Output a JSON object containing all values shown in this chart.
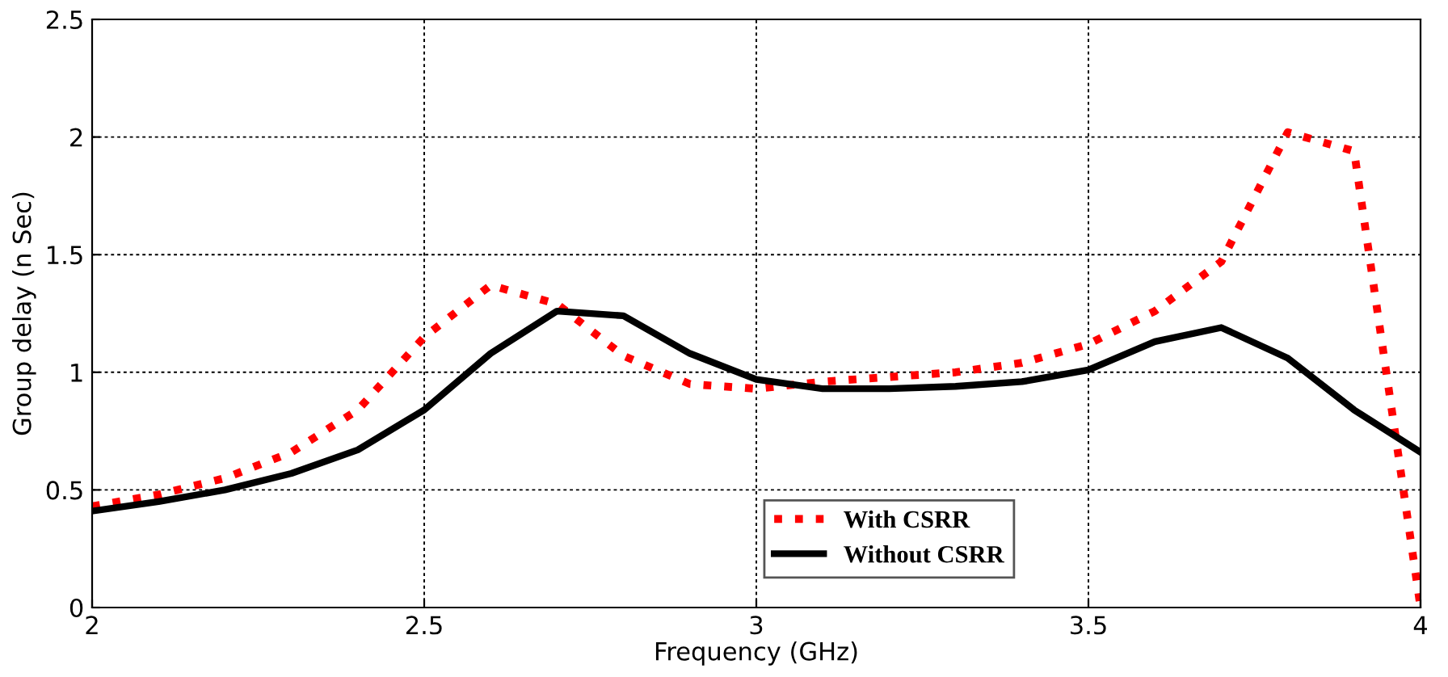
{
  "chart_data": {
    "type": "line",
    "xlabel": "Frequency (GHz)",
    "ylabel": "Group delay (n Sec)",
    "x": [
      2.0,
      2.1,
      2.2,
      2.3,
      2.4,
      2.5,
      2.6,
      2.7,
      2.8,
      2.9,
      3.0,
      3.1,
      3.2,
      3.3,
      3.4,
      3.5,
      3.6,
      3.7,
      3.8,
      3.9,
      4.0
    ],
    "series": [
      {
        "name": "With CSRR",
        "color": "#ff0000",
        "line_style": "dotted",
        "values": [
          0.43,
          0.48,
          0.55,
          0.66,
          0.84,
          1.15,
          1.37,
          1.29,
          1.07,
          0.95,
          0.93,
          0.96,
          0.98,
          1.0,
          1.04,
          1.12,
          1.26,
          1.47,
          2.02,
          1.94,
          0.0
        ]
      },
      {
        "name": "Without CSRR",
        "color": "#000000",
        "line_style": "solid",
        "values": [
          0.41,
          0.45,
          0.5,
          0.57,
          0.67,
          0.84,
          1.08,
          1.26,
          1.24,
          1.08,
          0.97,
          0.93,
          0.93,
          0.94,
          0.96,
          1.01,
          1.13,
          1.19,
          1.06,
          0.84,
          0.66
        ]
      }
    ],
    "xlim": [
      2,
      4
    ],
    "ylim": [
      0,
      2.5
    ],
    "xticks": [
      2,
      2.5,
      3,
      3.5,
      4
    ],
    "yticks": [
      0,
      0.5,
      1,
      1.5,
      2,
      2.5
    ],
    "grid": true,
    "legend": "bottom",
    "marker": "none"
  }
}
